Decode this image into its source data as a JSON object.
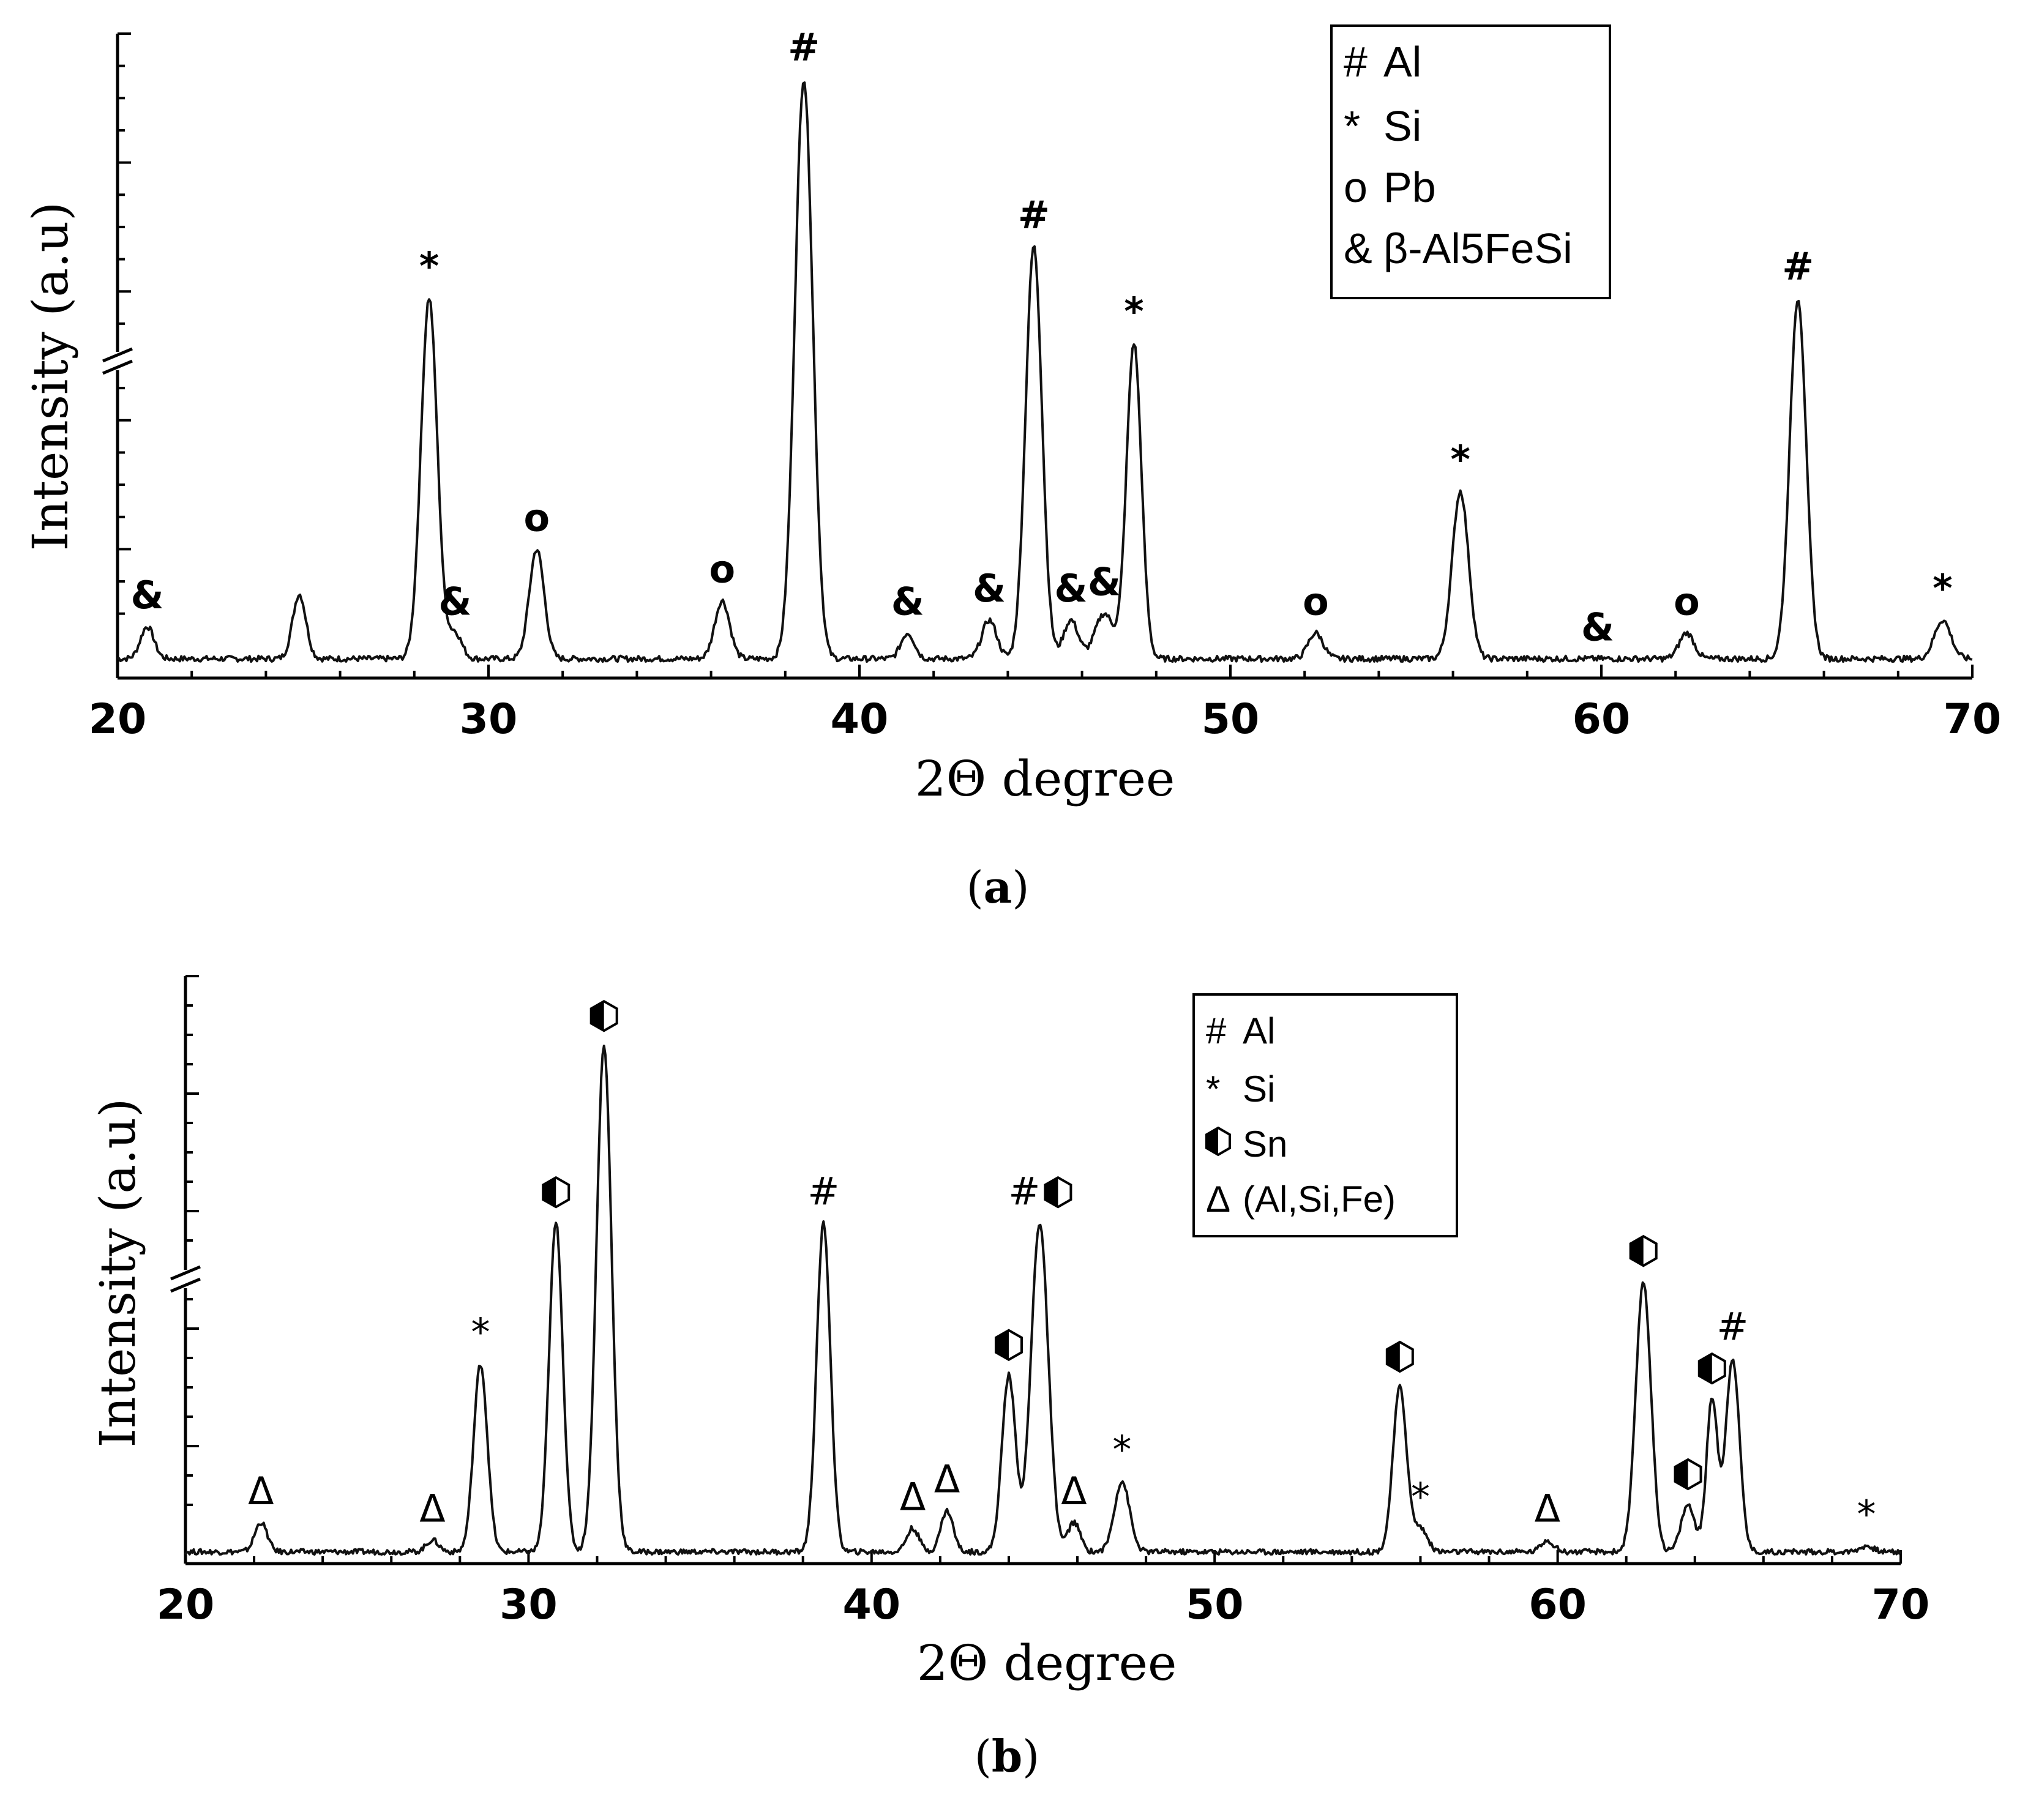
{
  "chart_data": [
    {
      "panel": "a",
      "type": "line",
      "title": "",
      "xlabel": "2Θ degree",
      "ylabel": "Intensity (a.u)",
      "xlim": [
        20,
        70
      ],
      "xticks": [
        20,
        30,
        40,
        50,
        60,
        70
      ],
      "ylim": [
        0,
        100
      ],
      "y_break": 50,
      "baseline": 3,
      "legend": {
        "position": "top-right",
        "entries": [
          {
            "symbol": "#",
            "label": "Al"
          },
          {
            "symbol": "*",
            "label": "Si"
          },
          {
            "symbol": "o",
            "label": "Pb"
          },
          {
            "symbol": "&",
            "label": "β-Al5FeSi"
          }
        ]
      },
      "peaks": [
        {
          "x": 20.8,
          "y": 5,
          "w": 0.18,
          "marker": "&"
        },
        {
          "x": 24.9,
          "y": 10,
          "w": 0.18,
          "marker": ""
        },
        {
          "x": 28.4,
          "y": 56,
          "w": 0.22,
          "marker": "*"
        },
        {
          "x": 29.1,
          "y": 4,
          "w": 0.18,
          "marker": "&"
        },
        {
          "x": 31.3,
          "y": 17,
          "w": 0.2,
          "marker": "o"
        },
        {
          "x": 36.3,
          "y": 9,
          "w": 0.2,
          "marker": "o"
        },
        {
          "x": 38.5,
          "y": 90,
          "w": 0.24,
          "marker": "#"
        },
        {
          "x": 41.3,
          "y": 4,
          "w": 0.18,
          "marker": "&"
        },
        {
          "x": 43.5,
          "y": 6,
          "w": 0.2,
          "marker": "&"
        },
        {
          "x": 44.7,
          "y": 64,
          "w": 0.22,
          "marker": "#"
        },
        {
          "x": 45.7,
          "y": 6,
          "w": 0.2,
          "marker": "&"
        },
        {
          "x": 46.6,
          "y": 7,
          "w": 0.25,
          "marker": "&"
        },
        {
          "x": 47.4,
          "y": 49,
          "w": 0.2,
          "marker": "*"
        },
        {
          "x": 52.3,
          "y": 4,
          "w": 0.2,
          "marker": "o"
        },
        {
          "x": 56.2,
          "y": 26,
          "w": 0.22,
          "marker": "*"
        },
        {
          "x": 59.9,
          "y": 0,
          "w": 0.2,
          "marker": "&"
        },
        {
          "x": 62.3,
          "y": 4,
          "w": 0.2,
          "marker": "o"
        },
        {
          "x": 65.3,
          "y": 56,
          "w": 0.22,
          "marker": "#"
        },
        {
          "x": 69.2,
          "y": 6,
          "w": 0.22,
          "marker": "*"
        }
      ]
    },
    {
      "panel": "b",
      "type": "line",
      "title": "",
      "xlabel": "2Θ degree",
      "ylabel": "Intensity (a.u)",
      "xlim": [
        20,
        70
      ],
      "xticks": [
        20,
        30,
        40,
        50,
        60,
        70
      ],
      "ylim": [
        0,
        100
      ],
      "y_break": 50,
      "baseline": 2,
      "legend": {
        "position": "top-right",
        "entries": [
          {
            "symbol": "#",
            "label": "Al"
          },
          {
            "symbol": "*",
            "label": "Si"
          },
          {
            "symbol": "half-filled-hexagon",
            "label": "Sn"
          },
          {
            "symbol": "Δ",
            "label": "(Al,Si,Fe)"
          }
        ]
      },
      "peaks": [
        {
          "x": 22.2,
          "y": 5,
          "w": 0.18,
          "marker": "Δ"
        },
        {
          "x": 27.2,
          "y": 2,
          "w": 0.18,
          "marker": "Δ"
        },
        {
          "x": 28.6,
          "y": 32,
          "w": 0.2,
          "marker": "*"
        },
        {
          "x": 30.8,
          "y": 56,
          "w": 0.2,
          "marker": "Sn"
        },
        {
          "x": 32.2,
          "y": 86,
          "w": 0.22,
          "marker": "Sn"
        },
        {
          "x": 38.6,
          "y": 56,
          "w": 0.2,
          "marker": "#"
        },
        {
          "x": 41.2,
          "y": 4,
          "w": 0.18,
          "marker": "Δ"
        },
        {
          "x": 42.2,
          "y": 7,
          "w": 0.18,
          "marker": "Δ"
        },
        {
          "x": 44.0,
          "y": 30,
          "w": 0.2,
          "marker": "Sn"
        },
        {
          "x": 44.9,
          "y": 56,
          "w": 0.25,
          "marker": "#Sn"
        },
        {
          "x": 45.9,
          "y": 5,
          "w": 0.18,
          "marker": "Δ"
        },
        {
          "x": 47.3,
          "y": 12,
          "w": 0.22,
          "marker": "*"
        },
        {
          "x": 55.4,
          "y": 28,
          "w": 0.2,
          "marker": "Sn"
        },
        {
          "x": 56.0,
          "y": 4,
          "w": 0.2,
          "marker": "*"
        },
        {
          "x": 59.7,
          "y": 2,
          "w": 0.18,
          "marker": "Δ"
        },
        {
          "x": 62.5,
          "y": 46,
          "w": 0.22,
          "marker": "Sn"
        },
        {
          "x": 63.8,
          "y": 8,
          "w": 0.2,
          "marker": "Sn"
        },
        {
          "x": 64.5,
          "y": 26,
          "w": 0.16,
          "marker": "Sn"
        },
        {
          "x": 65.1,
          "y": 33,
          "w": 0.2,
          "marker": "#"
        },
        {
          "x": 69.0,
          "y": 1,
          "w": 0.2,
          "marker": "*"
        }
      ]
    }
  ],
  "captions": {
    "a": "(a)",
    "b": "(b)",
    "a_letter": "a",
    "b_letter": "b"
  }
}
